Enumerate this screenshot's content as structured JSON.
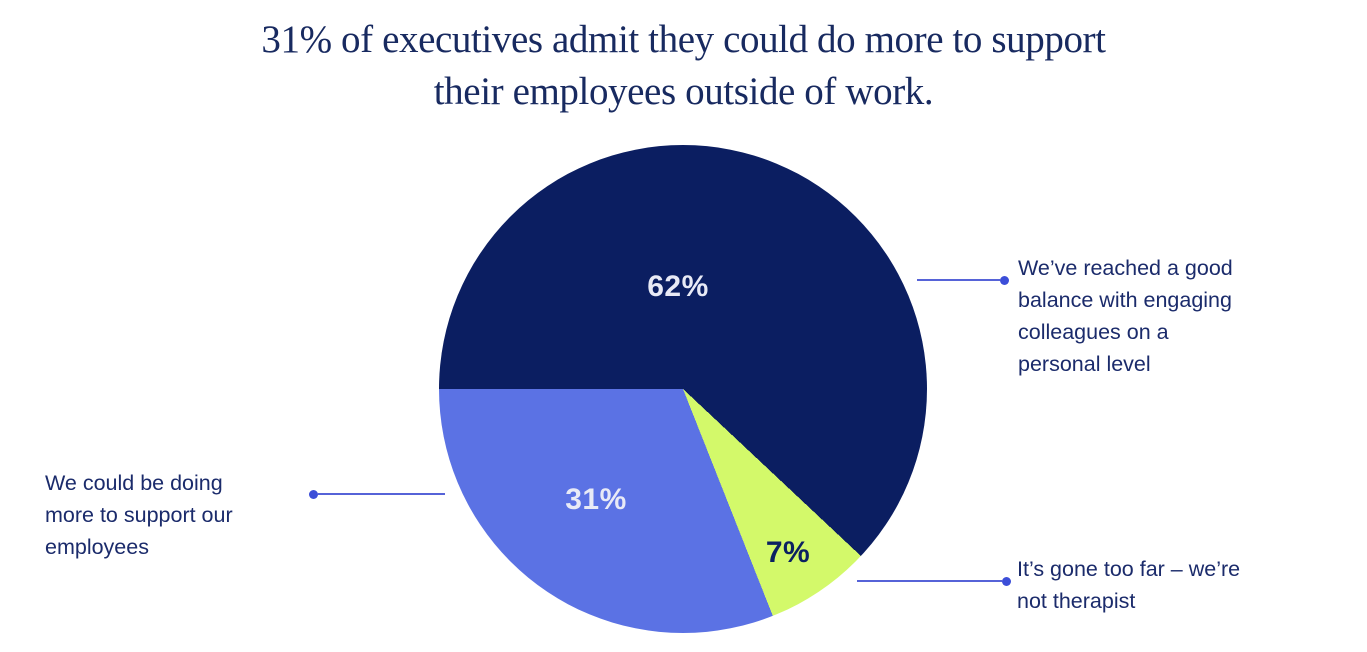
{
  "title": {
    "line1": "31% of executives admit they could do more to support",
    "line2": "their employees outside of work."
  },
  "colors": {
    "background": "#ffffff",
    "title": "#182a60",
    "callout_text": "#1b2b6b",
    "connector_line": "#5663d8",
    "connector_dot": "#3c4ed8"
  },
  "callouts": {
    "right_top": {
      "text": "We’ve reached a good\nbalance with engaging\ncolleagues on a\npersonal level"
    },
    "left": {
      "text": "We could be doing\nmore to support our\nemployees"
    },
    "bottom_right": {
      "text": "It’s gone too far – we’re\nnot therapist"
    }
  },
  "chart_data": {
    "type": "pie",
    "title": "31% of executives admit they could do more to support their employees outside of work.",
    "legend": "none (direct callout labels)",
    "start_angle_deg": 270,
    "direction": "clockwise",
    "categories": [
      "We’ve reached a good balance with engaging colleagues on a personal level",
      "It’s gone too far – we’re not therapist",
      "We could be doing more to support our employees"
    ],
    "values": [
      62,
      7,
      31
    ],
    "slices": [
      {
        "label": "We’ve reached a good balance with engaging colleagues on a personal level",
        "pct": 62,
        "color": "#0b1e61",
        "value_label": "62%",
        "value_label_color": "#e8eaf6",
        "value_label_pos": [
          239,
          142
        ]
      },
      {
        "label": "It’s gone too far – we’re not therapist",
        "pct": 7,
        "color": "#d3f96a",
        "value_label": "7%",
        "value_label_color": "#0b2161",
        "value_label_pos": [
          349,
          408
        ]
      },
      {
        "label": "We could be doing more to support our employees",
        "pct": 31,
        "color": "#5b72e4",
        "value_label": "31%",
        "value_label_color": "#e8eaf6",
        "value_label_pos": [
          157,
          355
        ]
      }
    ]
  }
}
